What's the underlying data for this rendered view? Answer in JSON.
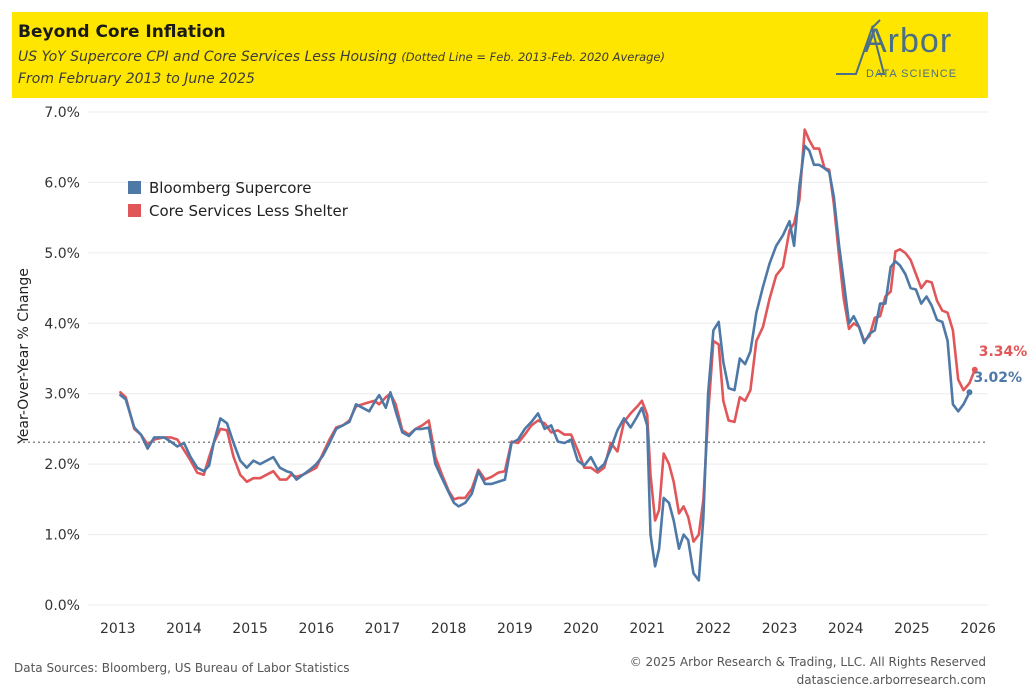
{
  "header": {
    "title": "Beyond Core Inflation",
    "subtitle": "US YoY Supercore CPI and Core Services Less Housing",
    "subtitle_note": "(Dotted Line = Feb. 2013-Feb. 2020 Average)",
    "date_range": "From February 2013 to June 2025"
  },
  "logo": {
    "word": "Arbor",
    "sub": "DATA SCIENCE"
  },
  "footer": {
    "sources": "Data Sources: Bloomberg, US Bureau of Labor Statistics",
    "copyright": "© 2025 Arbor Research & Trading, LLC. All Rights Reserved",
    "website": "datascience.arborresearch.com"
  },
  "colors": {
    "supercore": "#4e79a7",
    "services": "#e15759",
    "header_bg": "#ffe600",
    "reference": "#999999"
  },
  "chart_data": {
    "type": "line",
    "title": "Beyond Core Inflation",
    "ylabel": "Year-Over-Year % Change",
    "xlabel": "",
    "ylim": [
      0,
      7
    ],
    "xlim": [
      2012.55,
      2026.15
    ],
    "yticks": [
      "0.0%",
      "1.0%",
      "2.0%",
      "3.0%",
      "4.0%",
      "5.0%",
      "6.0%",
      "7.0%"
    ],
    "xticks": [
      "2013",
      "2014",
      "2015",
      "2016",
      "2017",
      "2018",
      "2019",
      "2020",
      "2021",
      "2022",
      "2023",
      "2024",
      "2025",
      "2026"
    ],
    "reference_line": {
      "label": "Feb. 2013-Feb. 2020 Average",
      "value": 2.31,
      "style": "dotted"
    },
    "legend": [
      "Bloomberg Supercore",
      "Core Services Less Shelter"
    ],
    "legend_position": "top-left",
    "series": [
      {
        "name": "Bloomberg Supercore",
        "color": "#4e79a7",
        "end_label": "3.02%",
        "points": [
          [
            2013.04,
            2.98
          ],
          [
            2013.12,
            2.92
          ],
          [
            2013.25,
            2.52
          ],
          [
            2013.35,
            2.42
          ],
          [
            2013.45,
            2.22
          ],
          [
            2013.55,
            2.38
          ],
          [
            2013.7,
            2.38
          ],
          [
            2013.8,
            2.32
          ],
          [
            2013.9,
            2.25
          ],
          [
            2014.0,
            2.3
          ],
          [
            2014.1,
            2.1
          ],
          [
            2014.2,
            1.95
          ],
          [
            2014.3,
            1.9
          ],
          [
            2014.38,
            1.98
          ],
          [
            2014.45,
            2.3
          ],
          [
            2014.55,
            2.65
          ],
          [
            2014.65,
            2.58
          ],
          [
            2014.75,
            2.3
          ],
          [
            2014.85,
            2.05
          ],
          [
            2014.95,
            1.95
          ],
          [
            2015.05,
            2.05
          ],
          [
            2015.15,
            2.0
          ],
          [
            2015.25,
            2.05
          ],
          [
            2015.35,
            2.1
          ],
          [
            2015.45,
            1.95
          ],
          [
            2015.55,
            1.9
          ],
          [
            2015.62,
            1.88
          ],
          [
            2015.7,
            1.78
          ],
          [
            2015.8,
            1.85
          ],
          [
            2015.9,
            1.92
          ],
          [
            2016.0,
            2.0
          ],
          [
            2016.1,
            2.12
          ],
          [
            2016.2,
            2.3
          ],
          [
            2016.3,
            2.5
          ],
          [
            2016.4,
            2.55
          ],
          [
            2016.5,
            2.6
          ],
          [
            2016.6,
            2.85
          ],
          [
            2016.7,
            2.8
          ],
          [
            2016.8,
            2.75
          ],
          [
            2016.88,
            2.88
          ],
          [
            2016.95,
            2.98
          ],
          [
            2017.05,
            2.8
          ],
          [
            2017.12,
            3.02
          ],
          [
            2017.2,
            2.75
          ],
          [
            2017.3,
            2.45
          ],
          [
            2017.4,
            2.4
          ],
          [
            2017.5,
            2.5
          ],
          [
            2017.6,
            2.5
          ],
          [
            2017.7,
            2.52
          ],
          [
            2017.8,
            2.0
          ],
          [
            2017.9,
            1.8
          ],
          [
            2018.0,
            1.6
          ],
          [
            2018.08,
            1.45
          ],
          [
            2018.15,
            1.4
          ],
          [
            2018.25,
            1.45
          ],
          [
            2018.35,
            1.58
          ],
          [
            2018.45,
            1.9
          ],
          [
            2018.55,
            1.72
          ],
          [
            2018.65,
            1.72
          ],
          [
            2018.75,
            1.75
          ],
          [
            2018.85,
            1.78
          ],
          [
            2018.95,
            2.3
          ],
          [
            2019.05,
            2.35
          ],
          [
            2019.15,
            2.5
          ],
          [
            2019.25,
            2.6
          ],
          [
            2019.35,
            2.72
          ],
          [
            2019.45,
            2.5
          ],
          [
            2019.55,
            2.55
          ],
          [
            2019.65,
            2.32
          ],
          [
            2019.75,
            2.3
          ],
          [
            2019.85,
            2.35
          ],
          [
            2019.95,
            2.05
          ],
          [
            2020.05,
            1.98
          ],
          [
            2020.15,
            2.1
          ],
          [
            2020.25,
            1.92
          ],
          [
            2020.35,
            2.0
          ],
          [
            2020.45,
            2.22
          ],
          [
            2020.55,
            2.48
          ],
          [
            2020.65,
            2.65
          ],
          [
            2020.75,
            2.52
          ],
          [
            2020.85,
            2.68
          ],
          [
            2020.92,
            2.8
          ],
          [
            2021.0,
            2.55
          ],
          [
            2021.05,
            1.0
          ],
          [
            2021.12,
            0.55
          ],
          [
            2021.18,
            0.8
          ],
          [
            2021.25,
            1.52
          ],
          [
            2021.33,
            1.45
          ],
          [
            2021.4,
            1.2
          ],
          [
            2021.48,
            0.8
          ],
          [
            2021.55,
            1.0
          ],
          [
            2021.62,
            0.92
          ],
          [
            2021.7,
            0.45
          ],
          [
            2021.78,
            0.35
          ],
          [
            2021.85,
            1.25
          ],
          [
            2021.92,
            3.0
          ],
          [
            2022.0,
            3.9
          ],
          [
            2022.08,
            4.02
          ],
          [
            2022.15,
            3.45
          ],
          [
            2022.23,
            3.08
          ],
          [
            2022.32,
            3.05
          ],
          [
            2022.4,
            3.5
          ],
          [
            2022.48,
            3.42
          ],
          [
            2022.56,
            3.6
          ],
          [
            2022.65,
            4.15
          ],
          [
            2022.75,
            4.52
          ],
          [
            2022.85,
            4.85
          ],
          [
            2022.95,
            5.1
          ],
          [
            2023.05,
            5.25
          ],
          [
            2023.15,
            5.45
          ],
          [
            2023.22,
            5.1
          ],
          [
            2023.3,
            5.95
          ],
          [
            2023.38,
            6.52
          ],
          [
            2023.45,
            6.45
          ],
          [
            2023.52,
            6.25
          ],
          [
            2023.6,
            6.25
          ],
          [
            2023.68,
            6.2
          ],
          [
            2023.75,
            6.15
          ],
          [
            2023.82,
            5.8
          ],
          [
            2023.9,
            5.1
          ],
          [
            2023.97,
            4.6
          ],
          [
            2024.05,
            4.0
          ],
          [
            2024.12,
            4.1
          ],
          [
            2024.2,
            3.95
          ],
          [
            2024.28,
            3.72
          ],
          [
            2024.36,
            3.85
          ],
          [
            2024.44,
            3.9
          ],
          [
            2024.52,
            4.28
          ],
          [
            2024.6,
            4.28
          ],
          [
            2024.68,
            4.8
          ],
          [
            2024.75,
            4.88
          ],
          [
            2024.82,
            4.82
          ],
          [
            2024.9,
            4.7
          ],
          [
            2024.98,
            4.5
          ],
          [
            2025.06,
            4.48
          ],
          [
            2025.14,
            4.28
          ],
          [
            2025.22,
            4.38
          ],
          [
            2025.3,
            4.25
          ],
          [
            2025.38,
            4.05
          ],
          [
            2025.46,
            4.02
          ],
          [
            2025.54,
            3.75
          ],
          [
            2025.62,
            2.85
          ],
          [
            2025.7,
            2.75
          ],
          [
            2025.78,
            2.85
          ],
          [
            2025.87,
            3.02
          ]
        ]
      },
      {
        "name": "Core Services Less Shelter",
        "color": "#e15759",
        "end_label": "3.34%",
        "points": [
          [
            2013.04,
            3.02
          ],
          [
            2013.12,
            2.95
          ],
          [
            2013.25,
            2.5
          ],
          [
            2013.35,
            2.42
          ],
          [
            2013.45,
            2.28
          ],
          [
            2013.55,
            2.35
          ],
          [
            2013.7,
            2.38
          ],
          [
            2013.8,
            2.38
          ],
          [
            2013.9,
            2.35
          ],
          [
            2014.0,
            2.2
          ],
          [
            2014.1,
            2.05
          ],
          [
            2014.2,
            1.88
          ],
          [
            2014.3,
            1.85
          ],
          [
            2014.38,
            2.1
          ],
          [
            2014.45,
            2.3
          ],
          [
            2014.55,
            2.5
          ],
          [
            2014.65,
            2.48
          ],
          [
            2014.75,
            2.1
          ],
          [
            2014.85,
            1.85
          ],
          [
            2014.95,
            1.75
          ],
          [
            2015.05,
            1.8
          ],
          [
            2015.15,
            1.8
          ],
          [
            2015.25,
            1.85
          ],
          [
            2015.35,
            1.9
          ],
          [
            2015.45,
            1.78
          ],
          [
            2015.55,
            1.78
          ],
          [
            2015.62,
            1.85
          ],
          [
            2015.7,
            1.82
          ],
          [
            2015.8,
            1.85
          ],
          [
            2015.9,
            1.9
          ],
          [
            2016.0,
            1.95
          ],
          [
            2016.1,
            2.15
          ],
          [
            2016.2,
            2.35
          ],
          [
            2016.3,
            2.52
          ],
          [
            2016.4,
            2.55
          ],
          [
            2016.5,
            2.62
          ],
          [
            2016.6,
            2.82
          ],
          [
            2016.7,
            2.85
          ],
          [
            2016.8,
            2.88
          ],
          [
            2016.88,
            2.9
          ],
          [
            2016.95,
            2.85
          ],
          [
            2017.05,
            2.95
          ],
          [
            2017.12,
            3.0
          ],
          [
            2017.2,
            2.85
          ],
          [
            2017.3,
            2.48
          ],
          [
            2017.4,
            2.42
          ],
          [
            2017.5,
            2.5
          ],
          [
            2017.6,
            2.55
          ],
          [
            2017.7,
            2.62
          ],
          [
            2017.8,
            2.1
          ],
          [
            2017.9,
            1.85
          ],
          [
            2018.0,
            1.62
          ],
          [
            2018.08,
            1.5
          ],
          [
            2018.15,
            1.52
          ],
          [
            2018.25,
            1.52
          ],
          [
            2018.35,
            1.65
          ],
          [
            2018.45,
            1.92
          ],
          [
            2018.55,
            1.78
          ],
          [
            2018.65,
            1.82
          ],
          [
            2018.75,
            1.88
          ],
          [
            2018.85,
            1.9
          ],
          [
            2018.95,
            2.32
          ],
          [
            2019.05,
            2.3
          ],
          [
            2019.15,
            2.42
          ],
          [
            2019.25,
            2.55
          ],
          [
            2019.35,
            2.62
          ],
          [
            2019.45,
            2.58
          ],
          [
            2019.55,
            2.45
          ],
          [
            2019.65,
            2.48
          ],
          [
            2019.75,
            2.42
          ],
          [
            2019.85,
            2.42
          ],
          [
            2019.95,
            2.2
          ],
          [
            2020.05,
            1.95
          ],
          [
            2020.15,
            1.95
          ],
          [
            2020.25,
            1.88
          ],
          [
            2020.35,
            1.95
          ],
          [
            2020.45,
            2.3
          ],
          [
            2020.55,
            2.18
          ],
          [
            2020.65,
            2.6
          ],
          [
            2020.75,
            2.72
          ],
          [
            2020.85,
            2.82
          ],
          [
            2020.92,
            2.9
          ],
          [
            2021.0,
            2.7
          ],
          [
            2021.05,
            1.85
          ],
          [
            2021.12,
            1.2
          ],
          [
            2021.18,
            1.35
          ],
          [
            2021.25,
            2.15
          ],
          [
            2021.33,
            2.0
          ],
          [
            2021.4,
            1.75
          ],
          [
            2021.48,
            1.3
          ],
          [
            2021.55,
            1.4
          ],
          [
            2021.62,
            1.25
          ],
          [
            2021.7,
            0.9
          ],
          [
            2021.78,
            1.0
          ],
          [
            2021.85,
            1.5
          ],
          [
            2021.92,
            2.7
          ],
          [
            2022.0,
            3.75
          ],
          [
            2022.08,
            3.7
          ],
          [
            2022.15,
            2.9
          ],
          [
            2022.23,
            2.62
          ],
          [
            2022.32,
            2.6
          ],
          [
            2022.4,
            2.95
          ],
          [
            2022.48,
            2.9
          ],
          [
            2022.56,
            3.05
          ],
          [
            2022.65,
            3.75
          ],
          [
            2022.75,
            3.95
          ],
          [
            2022.85,
            4.35
          ],
          [
            2022.95,
            4.68
          ],
          [
            2023.05,
            4.8
          ],
          [
            2023.15,
            5.32
          ],
          [
            2023.22,
            5.42
          ],
          [
            2023.3,
            5.75
          ],
          [
            2023.38,
            6.75
          ],
          [
            2023.45,
            6.6
          ],
          [
            2023.52,
            6.48
          ],
          [
            2023.6,
            6.48
          ],
          [
            2023.68,
            6.2
          ],
          [
            2023.75,
            6.18
          ],
          [
            2023.82,
            5.7
          ],
          [
            2023.9,
            4.95
          ],
          [
            2023.97,
            4.35
          ],
          [
            2024.05,
            3.92
          ],
          [
            2024.12,
            4.0
          ],
          [
            2024.2,
            3.95
          ],
          [
            2024.28,
            3.75
          ],
          [
            2024.36,
            3.82
          ],
          [
            2024.44,
            4.08
          ],
          [
            2024.52,
            4.1
          ],
          [
            2024.6,
            4.38
          ],
          [
            2024.68,
            4.45
          ],
          [
            2024.75,
            5.02
          ],
          [
            2024.82,
            5.05
          ],
          [
            2024.9,
            5.0
          ],
          [
            2024.98,
            4.9
          ],
          [
            2025.06,
            4.7
          ],
          [
            2025.14,
            4.5
          ],
          [
            2025.22,
            4.6
          ],
          [
            2025.3,
            4.58
          ],
          [
            2025.38,
            4.32
          ],
          [
            2025.46,
            4.18
          ],
          [
            2025.54,
            4.15
          ],
          [
            2025.62,
            3.9
          ],
          [
            2025.7,
            3.2
          ],
          [
            2025.78,
            3.05
          ],
          [
            2025.87,
            3.15
          ],
          [
            2025.95,
            3.34
          ]
        ]
      }
    ]
  }
}
